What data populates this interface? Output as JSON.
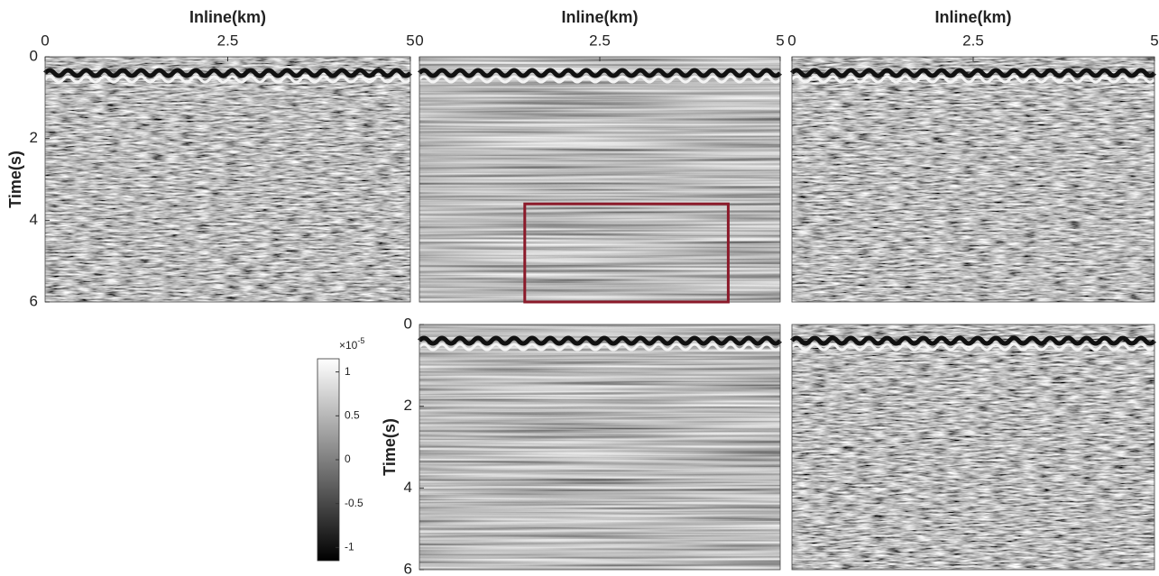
{
  "chart_data": [
    {
      "type": "seismic",
      "xlabel": "Inline(km)",
      "ylabel": "Time(s)",
      "xlim": [
        0,
        5
      ],
      "ylim": [
        0,
        6
      ],
      "xticks": [
        0,
        2.5,
        5
      ],
      "yticks": [
        0,
        2,
        4,
        6
      ]
    },
    {
      "type": "seismic",
      "xlabel": "Inline(km)",
      "xlim": [
        0,
        5
      ],
      "ylim": [
        0,
        6
      ],
      "xticks": [
        0,
        2.5,
        5
      ],
      "box": {
        "x": [
          1.46,
          4.28
        ],
        "y": [
          3.6,
          6
        ],
        "color": "#8b1a2a"
      }
    },
    {
      "type": "seismic",
      "xlabel": "Inline(km)",
      "xlim": [
        0,
        5
      ],
      "ylim": [
        0,
        6
      ],
      "xticks": [
        0,
        2.5,
        5
      ]
    },
    {
      "type": "seismic",
      "ylabel": "Time(s)",
      "xlim": [
        0,
        5
      ],
      "ylim": [
        0,
        6
      ],
      "yticks": [
        0,
        2,
        4,
        6
      ]
    },
    {
      "type": "seismic",
      "xlim": [
        0,
        5
      ],
      "ylim": [
        0,
        6
      ]
    },
    {
      "type": "colorbar",
      "clim": [
        -1.15,
        1.15
      ],
      "ticks": [
        -1,
        -0.5,
        0,
        0.5,
        1
      ],
      "scale_label": "×10",
      "scale_exponent": "-5"
    }
  ]
}
